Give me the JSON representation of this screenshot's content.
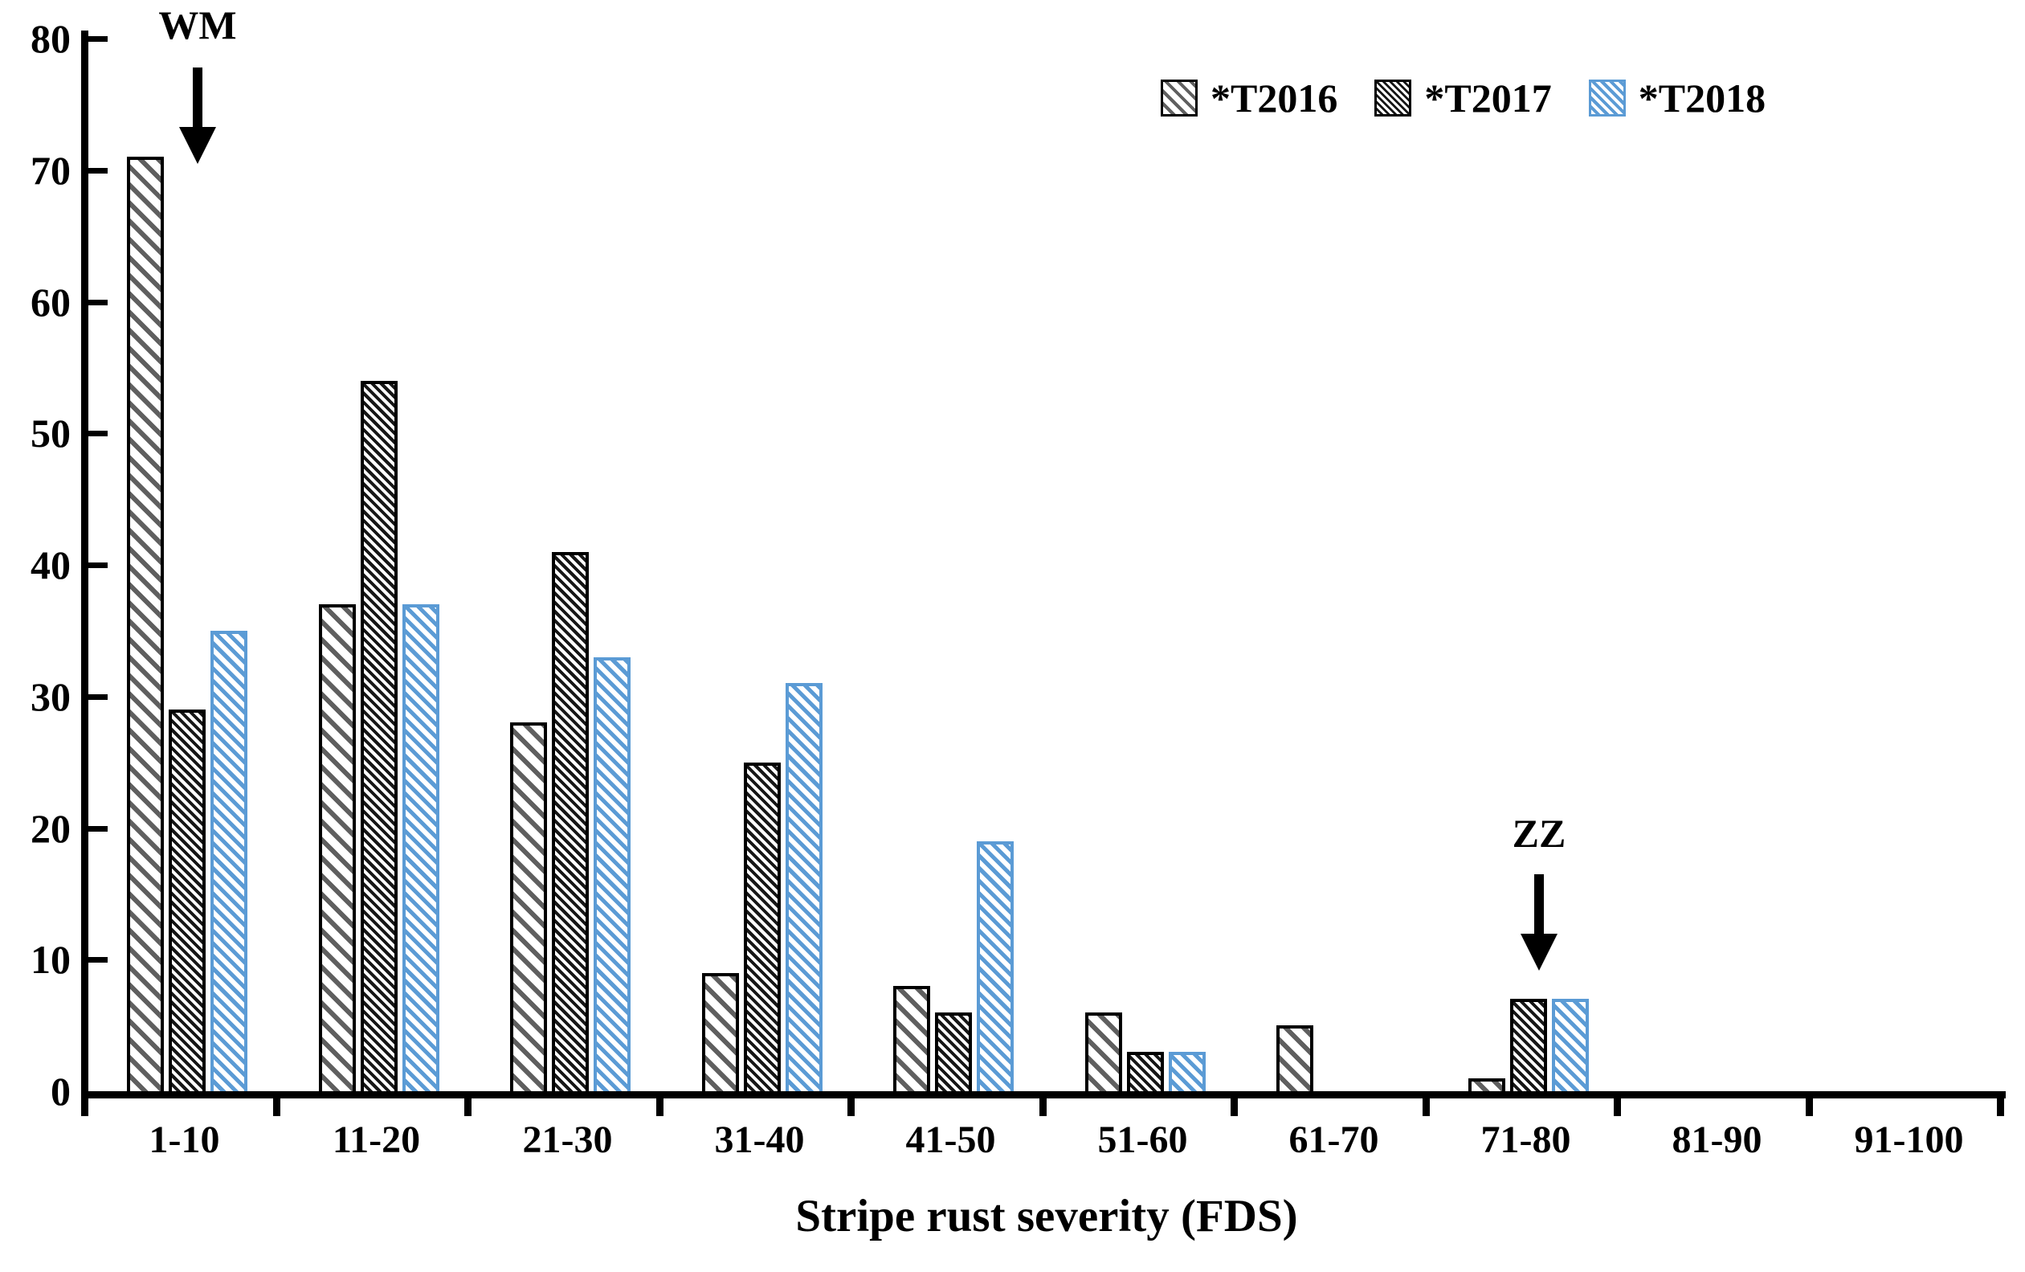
{
  "chart_data": {
    "type": "bar",
    "title": "",
    "xlabel": "Stripe rust severity (FDS)",
    "ylabel": "",
    "ylim": [
      0,
      80
    ],
    "ytick_step": 10,
    "grid": false,
    "legend_position": "top-right",
    "axis_color": "#000000",
    "categories": [
      "1-10",
      "11-20",
      "21-30",
      "31-40",
      "41-50",
      "51-60",
      "61-70",
      "71-80",
      "81-90",
      "91-100"
    ],
    "series": [
      {
        "name": "*T2016",
        "pattern": "sparse-gray-diagonal-hatch",
        "edge_color": "#000000",
        "hatch_color": "#5f5f5f",
        "values": [
          71,
          37,
          28,
          9,
          8,
          6,
          5,
          1,
          0,
          0
        ]
      },
      {
        "name": "*T2017",
        "pattern": "dense-black-diagonal-hatch",
        "edge_color": "#000000",
        "hatch_color": "#161616",
        "values": [
          29,
          54,
          41,
          25,
          6,
          3,
          0,
          7,
          0,
          0
        ]
      },
      {
        "name": "*T2018",
        "pattern": "blue-diagonal-hatch",
        "edge_color": "#5b9bd5",
        "hatch_color": "#5b9bd5",
        "values": [
          35,
          37,
          33,
          31,
          19,
          3,
          0,
          7,
          0,
          0
        ]
      }
    ],
    "annotations": [
      {
        "text": "WM",
        "category": "1-10",
        "marker": "down-arrow"
      },
      {
        "text": "ZZ",
        "category": "71-80",
        "marker": "down-arrow"
      }
    ]
  }
}
